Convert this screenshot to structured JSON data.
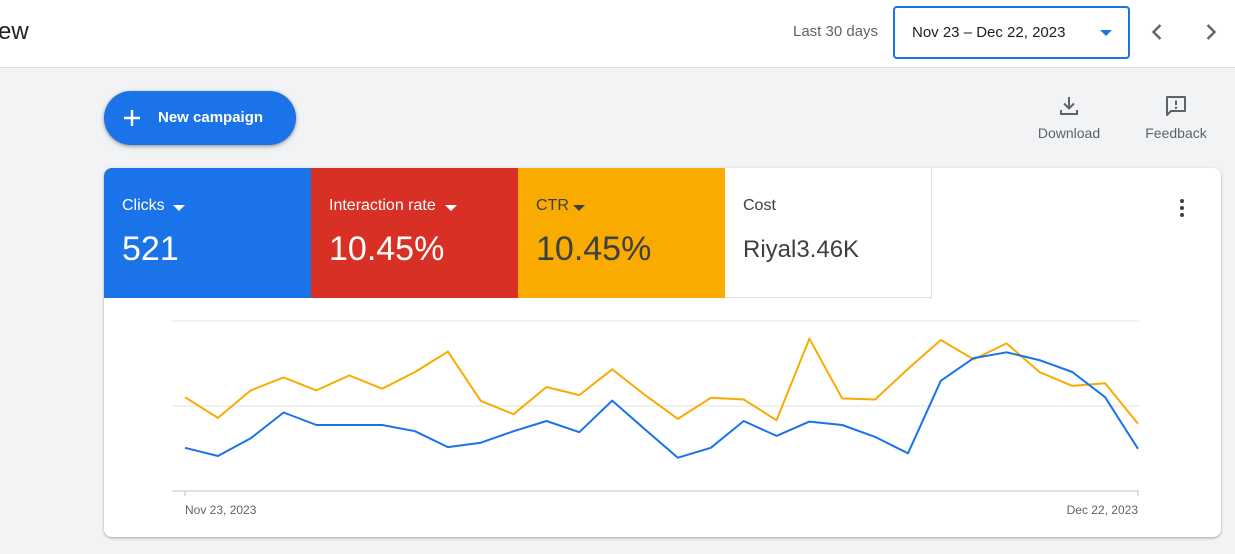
{
  "header": {
    "page_title": "ew",
    "range_label": "Last 30 days",
    "date_range": "Nov 23 – Dec 22, 2023"
  },
  "actions": {
    "new_campaign": "New campaign",
    "download": "Download",
    "feedback": "Feedback"
  },
  "metrics": {
    "clicks": {
      "name": "Clicks",
      "value": "521",
      "color": "#1a73e8"
    },
    "interaction_rate": {
      "name": "Interaction rate",
      "value": "10.45%",
      "color": "#d93025"
    },
    "ctr": {
      "name": "CTR",
      "value": "10.45%",
      "color": "#f9ab00"
    },
    "cost": {
      "name": "Cost",
      "value": "Riyal3.46K"
    }
  },
  "icons": [
    "chevron-left-icon",
    "chevron-right-icon",
    "plus-icon",
    "download-icon",
    "feedback-icon",
    "more-vert-icon",
    "caret-down-icon"
  ],
  "chart_data": {
    "type": "line",
    "x_labels": [
      "Nov 23, 2023",
      "Dec 22, 2023"
    ],
    "grid": true,
    "series": [
      {
        "color": "#1a73e8",
        "values": [
          12.7,
          10.3,
          15.5,
          23.1,
          19.4,
          19.4,
          19.4,
          17.6,
          12.9,
          14.2,
          17.6,
          20.6,
          17.3,
          26.6,
          18.1,
          9.8,
          12.7,
          20.6,
          16.2,
          20.4,
          19.4,
          15.9,
          11.1,
          32.4,
          39.1,
          40.8,
          38.5,
          35.0,
          27.6,
          12.4
        ]
      },
      {
        "color": "#f9ab00",
        "values": [
          27.6,
          21.5,
          29.6,
          33.4,
          29.6,
          34.0,
          30.1,
          35.0,
          41.0,
          26.5,
          22.6,
          30.6,
          28.2,
          35.8,
          28.2,
          21.2,
          27.4,
          26.9,
          20.8,
          44.8,
          27.2,
          26.9,
          35.9,
          44.4,
          38.7,
          43.4,
          35.0,
          30.9,
          31.7,
          19.8
        ]
      }
    ]
  }
}
